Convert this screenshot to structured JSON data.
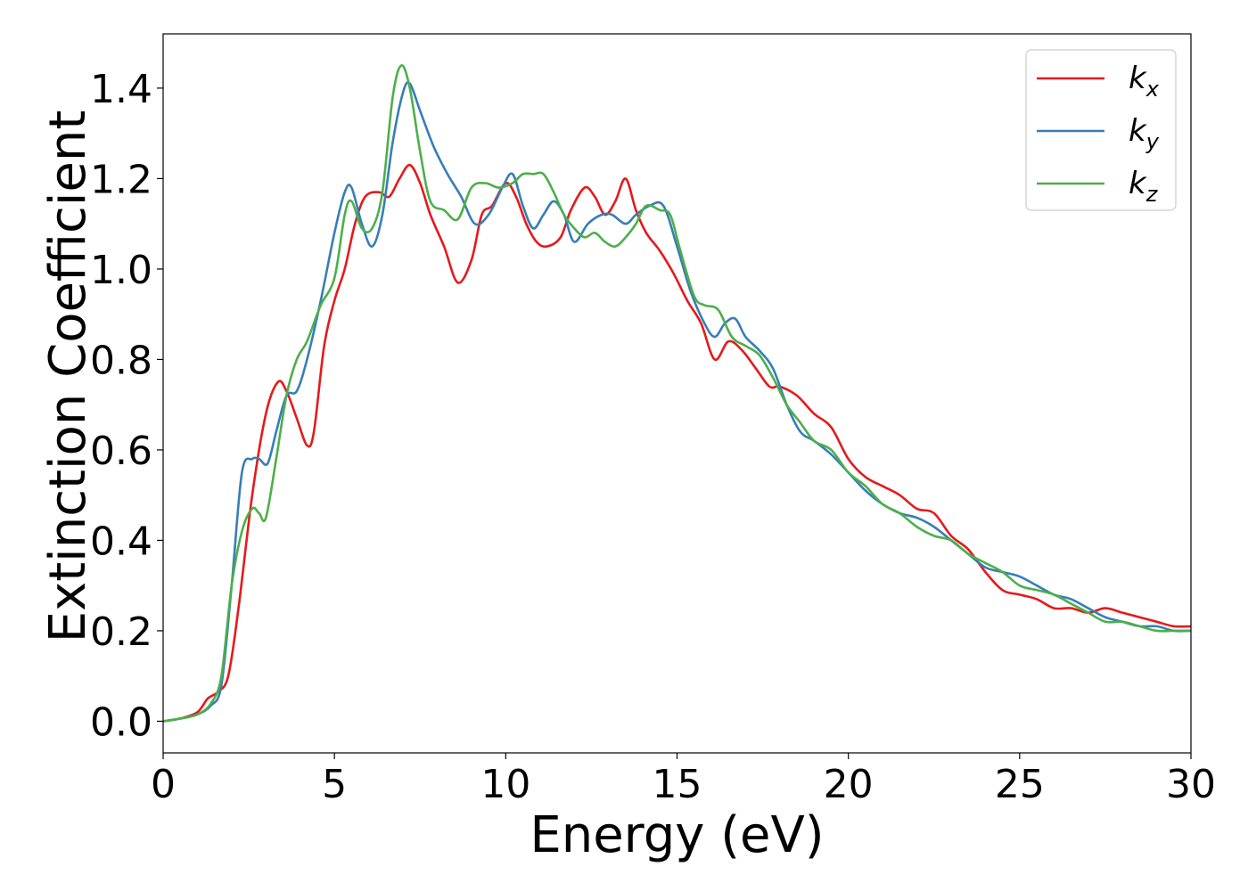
{
  "chart_data": {
    "type": "line",
    "title": "",
    "xlabel": "Energy (eV)",
    "ylabel": "Extinction Coefficient",
    "xlim": [
      0,
      30
    ],
    "ylim": [
      -0.07,
      1.52
    ],
    "x_ticks": [
      0,
      5,
      10,
      15,
      20,
      25,
      30
    ],
    "y_ticks": [
      0.0,
      0.2,
      0.4,
      0.6,
      0.8,
      1.0,
      1.2,
      1.4
    ],
    "x_tick_labels": [
      "0",
      "5",
      "10",
      "15",
      "20",
      "25",
      "30"
    ],
    "y_tick_labels": [
      "0.0",
      "0.2",
      "0.4",
      "0.6",
      "0.8",
      "1.0",
      "1.2",
      "1.4"
    ],
    "grid": false,
    "legend_position": "top-right",
    "series": [
      {
        "name": "k_x",
        "label_main": "k",
        "label_sub": "x",
        "color": "#e41a1c",
        "points": [
          [
            0,
            0
          ],
          [
            0.5,
            0.006
          ],
          [
            1.0,
            0.02
          ],
          [
            1.3,
            0.05
          ],
          [
            1.6,
            0.065
          ],
          [
            1.9,
            0.1
          ],
          [
            2.2,
            0.25
          ],
          [
            2.6,
            0.5
          ],
          [
            3.0,
            0.68
          ],
          [
            3.35,
            0.75
          ],
          [
            3.6,
            0.73
          ],
          [
            3.9,
            0.67
          ],
          [
            4.2,
            0.61
          ],
          [
            4.4,
            0.64
          ],
          [
            4.7,
            0.83
          ],
          [
            5.0,
            0.93
          ],
          [
            5.3,
            1.0
          ],
          [
            5.6,
            1.1
          ],
          [
            5.9,
            1.16
          ],
          [
            6.3,
            1.17
          ],
          [
            6.6,
            1.16
          ],
          [
            6.9,
            1.2
          ],
          [
            7.2,
            1.23
          ],
          [
            7.5,
            1.19
          ],
          [
            7.8,
            1.12
          ],
          [
            8.2,
            1.05
          ],
          [
            8.6,
            0.97
          ],
          [
            9.0,
            1.02
          ],
          [
            9.3,
            1.12
          ],
          [
            9.6,
            1.14
          ],
          [
            10.0,
            1.19
          ],
          [
            10.3,
            1.16
          ],
          [
            10.6,
            1.1
          ],
          [
            10.9,
            1.06
          ],
          [
            11.2,
            1.05
          ],
          [
            11.6,
            1.07
          ],
          [
            11.9,
            1.13
          ],
          [
            12.3,
            1.18
          ],
          [
            12.6,
            1.16
          ],
          [
            12.9,
            1.12
          ],
          [
            13.2,
            1.15
          ],
          [
            13.5,
            1.2
          ],
          [
            13.8,
            1.13
          ],
          [
            14.1,
            1.08
          ],
          [
            14.5,
            1.04
          ],
          [
            14.9,
            0.99
          ],
          [
            15.3,
            0.93
          ],
          [
            15.7,
            0.88
          ],
          [
            16.1,
            0.8
          ],
          [
            16.5,
            0.84
          ],
          [
            16.9,
            0.82
          ],
          [
            17.3,
            0.78
          ],
          [
            17.7,
            0.74
          ],
          [
            18.0,
            0.74
          ],
          [
            18.5,
            0.72
          ],
          [
            19.0,
            0.68
          ],
          [
            19.5,
            0.65
          ],
          [
            20.0,
            0.58
          ],
          [
            20.5,
            0.54
          ],
          [
            21.0,
            0.52
          ],
          [
            21.5,
            0.5
          ],
          [
            22.0,
            0.47
          ],
          [
            22.5,
            0.46
          ],
          [
            23.0,
            0.41
          ],
          [
            23.5,
            0.38
          ],
          [
            24.0,
            0.33
          ],
          [
            24.5,
            0.29
          ],
          [
            25.0,
            0.28
          ],
          [
            25.5,
            0.27
          ],
          [
            26.0,
            0.25
          ],
          [
            26.5,
            0.25
          ],
          [
            27.0,
            0.24
          ],
          [
            27.5,
            0.25
          ],
          [
            28.0,
            0.24
          ],
          [
            28.5,
            0.23
          ],
          [
            29.0,
            0.22
          ],
          [
            29.5,
            0.21
          ],
          [
            30.0,
            0.21
          ]
        ]
      },
      {
        "name": "k_y",
        "label_main": "k",
        "label_sub": "y",
        "color": "#377eb8",
        "points": [
          [
            0,
            0
          ],
          [
            0.5,
            0.006
          ],
          [
            1.0,
            0.015
          ],
          [
            1.4,
            0.035
          ],
          [
            1.7,
            0.08
          ],
          [
            2.0,
            0.3
          ],
          [
            2.3,
            0.55
          ],
          [
            2.6,
            0.58
          ],
          [
            2.8,
            0.58
          ],
          [
            3.05,
            0.57
          ],
          [
            3.3,
            0.64
          ],
          [
            3.6,
            0.72
          ],
          [
            3.9,
            0.73
          ],
          [
            4.2,
            0.8
          ],
          [
            4.6,
            0.93
          ],
          [
            5.0,
            1.08
          ],
          [
            5.3,
            1.17
          ],
          [
            5.5,
            1.18
          ],
          [
            5.8,
            1.1
          ],
          [
            6.1,
            1.05
          ],
          [
            6.4,
            1.12
          ],
          [
            6.7,
            1.28
          ],
          [
            7.0,
            1.39
          ],
          [
            7.2,
            1.41
          ],
          [
            7.5,
            1.35
          ],
          [
            7.9,
            1.27
          ],
          [
            8.3,
            1.21
          ],
          [
            8.7,
            1.16
          ],
          [
            9.1,
            1.1
          ],
          [
            9.5,
            1.12
          ],
          [
            9.9,
            1.18
          ],
          [
            10.2,
            1.21
          ],
          [
            10.5,
            1.14
          ],
          [
            10.8,
            1.09
          ],
          [
            11.1,
            1.12
          ],
          [
            11.4,
            1.15
          ],
          [
            11.7,
            1.12
          ],
          [
            12.0,
            1.06
          ],
          [
            12.4,
            1.1
          ],
          [
            12.8,
            1.12
          ],
          [
            13.1,
            1.12
          ],
          [
            13.5,
            1.1
          ],
          [
            13.8,
            1.12
          ],
          [
            14.2,
            1.14
          ],
          [
            14.6,
            1.14
          ],
          [
            15.0,
            1.05
          ],
          [
            15.4,
            0.95
          ],
          [
            15.8,
            0.88
          ],
          [
            16.1,
            0.85
          ],
          [
            16.4,
            0.88
          ],
          [
            16.7,
            0.89
          ],
          [
            17.0,
            0.85
          ],
          [
            17.4,
            0.82
          ],
          [
            17.8,
            0.78
          ],
          [
            18.2,
            0.7
          ],
          [
            18.6,
            0.64
          ],
          [
            19.0,
            0.62
          ],
          [
            19.5,
            0.59
          ],
          [
            20.0,
            0.55
          ],
          [
            20.5,
            0.51
          ],
          [
            21.0,
            0.48
          ],
          [
            21.5,
            0.46
          ],
          [
            22.0,
            0.45
          ],
          [
            22.5,
            0.43
          ],
          [
            23.0,
            0.4
          ],
          [
            23.5,
            0.37
          ],
          [
            24.0,
            0.34
          ],
          [
            24.5,
            0.33
          ],
          [
            25.0,
            0.32
          ],
          [
            25.5,
            0.3
          ],
          [
            26.0,
            0.28
          ],
          [
            26.5,
            0.27
          ],
          [
            27.0,
            0.25
          ],
          [
            27.5,
            0.23
          ],
          [
            28.0,
            0.22
          ],
          [
            28.5,
            0.21
          ],
          [
            29.0,
            0.21
          ],
          [
            29.5,
            0.2
          ],
          [
            30.0,
            0.2
          ]
        ]
      },
      {
        "name": "k_z",
        "label_main": "k",
        "label_sub": "z",
        "color": "#4daf4a",
        "points": [
          [
            0,
            0
          ],
          [
            0.5,
            0.006
          ],
          [
            1.0,
            0.015
          ],
          [
            1.4,
            0.04
          ],
          [
            1.7,
            0.1
          ],
          [
            2.0,
            0.3
          ],
          [
            2.3,
            0.42
          ],
          [
            2.6,
            0.47
          ],
          [
            2.8,
            0.46
          ],
          [
            3.0,
            0.45
          ],
          [
            3.3,
            0.58
          ],
          [
            3.6,
            0.72
          ],
          [
            3.9,
            0.8
          ],
          [
            4.2,
            0.84
          ],
          [
            4.6,
            0.92
          ],
          [
            5.0,
            0.98
          ],
          [
            5.3,
            1.12
          ],
          [
            5.5,
            1.15
          ],
          [
            5.8,
            1.09
          ],
          [
            6.1,
            1.09
          ],
          [
            6.4,
            1.17
          ],
          [
            6.7,
            1.38
          ],
          [
            6.95,
            1.45
          ],
          [
            7.2,
            1.4
          ],
          [
            7.5,
            1.26
          ],
          [
            7.8,
            1.15
          ],
          [
            8.2,
            1.13
          ],
          [
            8.6,
            1.11
          ],
          [
            9.0,
            1.18
          ],
          [
            9.4,
            1.19
          ],
          [
            9.8,
            1.18
          ],
          [
            10.2,
            1.19
          ],
          [
            10.5,
            1.21
          ],
          [
            10.8,
            1.21
          ],
          [
            11.1,
            1.21
          ],
          [
            11.4,
            1.17
          ],
          [
            11.7,
            1.12
          ],
          [
            12.0,
            1.09
          ],
          [
            12.3,
            1.07
          ],
          [
            12.6,
            1.08
          ],
          [
            12.9,
            1.06
          ],
          [
            13.2,
            1.05
          ],
          [
            13.5,
            1.07
          ],
          [
            13.8,
            1.1
          ],
          [
            14.1,
            1.14
          ],
          [
            14.5,
            1.13
          ],
          [
            14.8,
            1.12
          ],
          [
            15.1,
            1.04
          ],
          [
            15.5,
            0.94
          ],
          [
            15.8,
            0.92
          ],
          [
            16.2,
            0.91
          ],
          [
            16.6,
            0.85
          ],
          [
            17.0,
            0.83
          ],
          [
            17.4,
            0.81
          ],
          [
            17.8,
            0.76
          ],
          [
            18.2,
            0.7
          ],
          [
            18.6,
            0.66
          ],
          [
            19.0,
            0.62
          ],
          [
            19.5,
            0.6
          ],
          [
            20.0,
            0.55
          ],
          [
            20.5,
            0.52
          ],
          [
            21.0,
            0.48
          ],
          [
            21.5,
            0.46
          ],
          [
            22.0,
            0.43
          ],
          [
            22.5,
            0.41
          ],
          [
            23.0,
            0.4
          ],
          [
            23.5,
            0.37
          ],
          [
            24.0,
            0.35
          ],
          [
            24.5,
            0.33
          ],
          [
            25.0,
            0.3
          ],
          [
            25.5,
            0.29
          ],
          [
            26.0,
            0.28
          ],
          [
            26.5,
            0.26
          ],
          [
            27.0,
            0.24
          ],
          [
            27.5,
            0.22
          ],
          [
            28.0,
            0.22
          ],
          [
            28.5,
            0.21
          ],
          [
            29.0,
            0.2
          ],
          [
            29.5,
            0.2
          ],
          [
            30.0,
            0.2
          ]
        ]
      }
    ]
  }
}
